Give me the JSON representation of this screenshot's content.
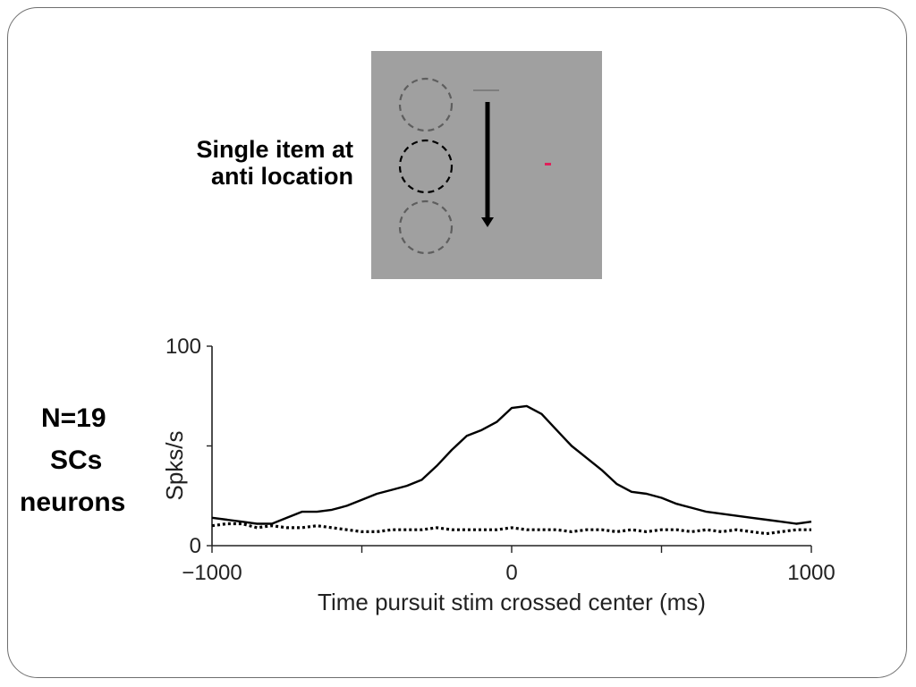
{
  "stimulus": {
    "label_lines": [
      "Single item at",
      "anti location"
    ],
    "colors": {
      "panel": "#a0a0a0",
      "fixation": "#e0205a"
    }
  },
  "sample": {
    "lines": [
      "N=19",
      "SCs",
      "neurons"
    ]
  },
  "chart_data": {
    "type": "line",
    "xlabel": "Time pursuit stim crossed center (ms)",
    "ylabel": "Spks/s",
    "xlim": [
      -1000,
      1000
    ],
    "ylim": [
      0,
      100
    ],
    "x_ticks": [
      -1000,
      -500,
      0,
      500,
      1000
    ],
    "x_tick_labels": [
      "−1000",
      "",
      "0",
      "",
      "1000"
    ],
    "y_ticks": [
      0,
      50,
      100
    ],
    "y_tick_labels": [
      "0",
      "",
      "100"
    ],
    "grid": false,
    "series": [
      {
        "style": "solid",
        "x": [
          -1000,
          -950,
          -900,
          -850,
          -800,
          -750,
          -700,
          -650,
          -600,
          -550,
          -500,
          -450,
          -400,
          -350,
          -300,
          -250,
          -200,
          -150,
          -100,
          -50,
          0,
          50,
          100,
          150,
          200,
          250,
          300,
          350,
          400,
          450,
          500,
          550,
          600,
          650,
          700,
          750,
          800,
          850,
          900,
          950,
          1000
        ],
        "y": [
          14,
          13,
          12,
          11,
          11,
          14,
          17,
          17,
          18,
          20,
          23,
          26,
          28,
          30,
          33,
          40,
          48,
          55,
          58,
          62,
          69,
          70,
          66,
          58,
          50,
          44,
          38,
          31,
          27,
          26,
          24,
          21,
          19,
          17,
          16,
          15,
          14,
          13,
          12,
          11,
          12
        ]
      },
      {
        "style": "dotted",
        "x": [
          -1000,
          -950,
          -900,
          -850,
          -800,
          -750,
          -700,
          -650,
          -600,
          -550,
          -500,
          -450,
          -400,
          -350,
          -300,
          -250,
          -200,
          -150,
          -100,
          -50,
          0,
          50,
          100,
          150,
          200,
          250,
          300,
          350,
          400,
          450,
          500,
          550,
          600,
          650,
          700,
          750,
          800,
          850,
          900,
          950,
          1000
        ],
        "y": [
          10,
          11,
          11,
          9,
          10,
          9,
          9,
          10,
          9,
          8,
          7,
          7,
          8,
          8,
          8,
          9,
          8,
          8,
          8,
          8,
          9,
          8,
          8,
          8,
          7,
          8,
          8,
          7,
          8,
          7,
          8,
          8,
          7,
          8,
          7,
          8,
          7,
          6,
          7,
          8,
          8
        ]
      }
    ]
  }
}
